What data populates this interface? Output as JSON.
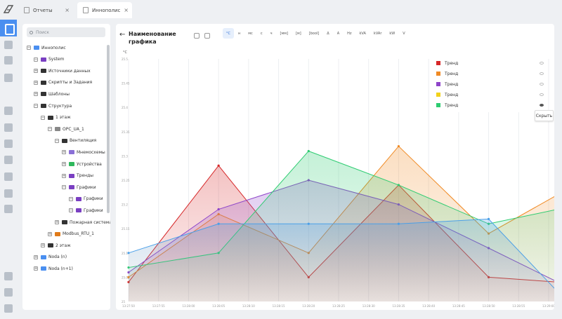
{
  "tabs": [
    {
      "label": "Отчеты"
    },
    {
      "label": "Иннополис"
    }
  ],
  "tree": {
    "search_placeholder": "Поиск",
    "nodes": [
      {
        "label": "Иннополис",
        "toggle": "−",
        "color": "#4a8ff0"
      },
      {
        "label": "System",
        "toggle": "−",
        "color": "#7a3fc2"
      },
      {
        "label": "Источники данных",
        "toggle": "+",
        "color": "#333333"
      },
      {
        "label": "Скрипты и Задания",
        "toggle": "+",
        "color": "#333333"
      },
      {
        "label": "Шаблоны",
        "toggle": "+",
        "color": "#333333"
      },
      {
        "label": "Структура",
        "toggle": "−",
        "color": "#333333"
      },
      {
        "label": "1 этаж",
        "toggle": "−",
        "color": "#333333"
      },
      {
        "label": "OPC_UA_1",
        "toggle": "−",
        "color": "#888888"
      },
      {
        "label": "Вентиляция",
        "toggle": "−",
        "color": "#333333"
      },
      {
        "label": "Мнемосхемы",
        "toggle": "+",
        "color": "#8a6fd6"
      },
      {
        "label": "Устройства",
        "toggle": "+",
        "color": "#2eb85c"
      },
      {
        "label": "Тренды",
        "toggle": "+",
        "color": "#7a3fc2"
      },
      {
        "label": "Графики",
        "toggle": "−",
        "color": "#7a3fc2"
      },
      {
        "label": "Графики",
        "toggle": "−",
        "color": "#7a3fc2"
      },
      {
        "label": "Графики",
        "toggle": "−",
        "color": "#7a3fc2"
      },
      {
        "label": "Пожарная система",
        "toggle": "+",
        "color": "#333333"
      },
      {
        "label": "Modbus_RTU_1",
        "toggle": "+",
        "color": "#e07b1a"
      },
      {
        "label": "2 этаж",
        "toggle": "+",
        "color": "#333333"
      },
      {
        "label": "Noda (n)",
        "toggle": "+",
        "color": "#4a8ff0"
      },
      {
        "label": "Noda (n+1)",
        "toggle": "+",
        "color": "#4a8ff0"
      }
    ]
  },
  "main": {
    "title": "Наименование графика",
    "units": [
      "°C",
      "н",
      "мс",
      "с",
      "ч",
      "[мм]",
      "[м]",
      "[bool]",
      "Δ",
      "А",
      "Hz",
      "kVA",
      "kVAr",
      "kW",
      "V"
    ]
  },
  "legend": {
    "items": [
      {
        "label": "Тренд",
        "color": "#d62728"
      },
      {
        "label": "Тренд",
        "color": "#f08a24"
      },
      {
        "label": "Тренд",
        "color": "#8e44c9"
      },
      {
        "label": "Тренд",
        "color": "#f2d21b"
      },
      {
        "label": "Тренд",
        "color": "#2ecc71"
      }
    ],
    "tooltip": "Скрыть"
  },
  "chart_data": {
    "type": "area",
    "ylabel": "°C",
    "yticks": [
      "25.5",
      "25.45",
      "25.4",
      "25.35",
      "25.3",
      "25.25",
      "25.2",
      "25.15",
      "25.1",
      "25.05",
      "25"
    ],
    "ylim": [
      25,
      25.5
    ],
    "x": [
      "13:27:50",
      "13:27:55",
      "13:28:00",
      "13:28:05",
      "13:28:10",
      "13:28:15",
      "13:28:20",
      "13:28:25",
      "13:28:30",
      "13:28:35",
      "13:28:40",
      "13:28:45",
      "13:28:50",
      "13:28:55",
      "13:29:00"
    ],
    "series": [
      {
        "color": "#d62728",
        "x": [
          0,
          3,
          6,
          9,
          12,
          14.3
        ],
        "values": [
          25.04,
          25.28,
          25.05,
          25.24,
          25.05,
          25.04
        ]
      },
      {
        "color": "#f08a24",
        "x": [
          0,
          3,
          6,
          9,
          12,
          14.3
        ],
        "values": [
          25.05,
          25.18,
          25.1,
          25.32,
          25.14,
          25.22
        ]
      },
      {
        "color": "#8e44c9",
        "x": [
          0,
          3,
          6,
          9,
          12,
          14.3
        ],
        "values": [
          25.06,
          25.19,
          25.25,
          25.2,
          25.11,
          25.04
        ]
      },
      {
        "color": "#2ecc71",
        "x": [
          0,
          3,
          6,
          9,
          12,
          14.3
        ],
        "values": [
          25.07,
          25.1,
          25.31,
          25.24,
          25.16,
          25.19
        ]
      },
      {
        "color": "#4a9fe8",
        "x": [
          0,
          3,
          6,
          9,
          12,
          14.3
        ],
        "values": [
          25.1,
          25.16,
          25.16,
          25.16,
          25.17,
          25.02
        ]
      }
    ]
  }
}
